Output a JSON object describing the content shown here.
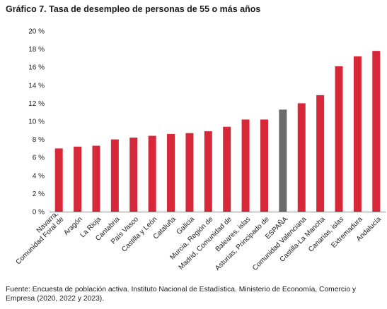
{
  "title": "Gráfico 7. Tasa de desempleo de personas de 55 o más años",
  "source": "Fuente: Encuesta de población activa. Instituto Nacional de Estadística. Ministerio de Economía, Comercio y Empresa (2020, 2022 y 2023).",
  "colors": {
    "bar": "#d7283a",
    "highlight": "#6b6b6b",
    "axis": "#8c8c8c"
  },
  "chart_data": {
    "type": "bar",
    "title": "Gráfico 7. Tasa de desempleo de personas de 55 o más años",
    "xlabel": "",
    "ylabel": "",
    "ylim": [
      0,
      20
    ],
    "yticks": [
      "0 %",
      "2 %",
      "4 %",
      "6 %",
      "8 %",
      "10 %",
      "12 %",
      "14 %",
      "16 %",
      "18 %",
      "20 %"
    ],
    "grid": false,
    "highlight_category": "ESPAÑA",
    "categories": [
      [
        "Navarra,",
        "Comunidad Foral de"
      ],
      [
        "Aragón"
      ],
      [
        "La Rioja"
      ],
      [
        "Cantabria"
      ],
      [
        "País Vasco"
      ],
      [
        "Castilla y León"
      ],
      [
        "Cataluña"
      ],
      [
        "Galicia"
      ],
      [
        "Murcia, Región de"
      ],
      [
        "Madrid, Comunidad de"
      ],
      [
        "Baleares, islas"
      ],
      [
        "Asturias, Principado de"
      ],
      [
        "ESPAÑA"
      ],
      [
        "Comunidad Valenciana"
      ],
      [
        "Castilla-La Mancha"
      ],
      [
        "Canarias, islas"
      ],
      [
        "Extremadura"
      ],
      [
        "Andalucía"
      ]
    ],
    "values": [
      7.0,
      7.2,
      7.3,
      8.0,
      8.2,
      8.4,
      8.6,
      8.7,
      8.9,
      9.4,
      10.2,
      10.2,
      11.3,
      12.0,
      12.9,
      16.1,
      17.2,
      17.8
    ]
  }
}
